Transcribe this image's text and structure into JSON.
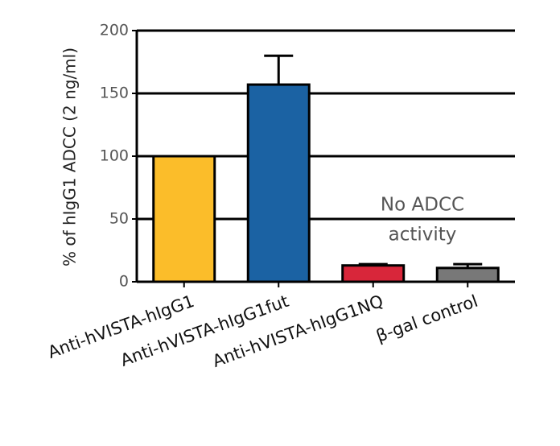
{
  "chart_data": {
    "type": "bar",
    "y_label": "% of hIgG1 ADCC (2 ng/ml)",
    "categories": [
      "Anti-hVISTA-hIgG1",
      "Anti-hVISTA-hIgG1fut",
      "Anti-hVISTA-hIgG1NQ",
      "β-gal control"
    ],
    "values": [
      100,
      157,
      13,
      11
    ],
    "errors": [
      0,
      23,
      1,
      3
    ],
    "colors": [
      "#fbbd2a",
      "#1b62a3",
      "#d8263a",
      "#787878"
    ],
    "annotation": [
      "No ADCC",
      "activity"
    ],
    "ylim": [
      0,
      200
    ],
    "yticks": [
      0,
      50,
      100,
      150,
      200
    ],
    "grid": true
  }
}
